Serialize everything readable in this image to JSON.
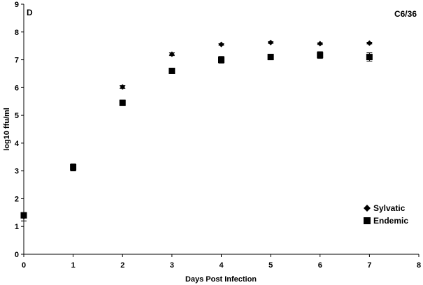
{
  "chart_data": {
    "type": "scatter",
    "panel_label": "D",
    "cell_line": "C6/36",
    "xlabel": "Days Post Infection",
    "ylabel": "log10 ffu/ml",
    "xlim": [
      0,
      8
    ],
    "ylim": [
      0,
      9
    ],
    "xticks": [
      "0",
      "1",
      "2",
      "3",
      "4",
      "5",
      "6",
      "7",
      "8"
    ],
    "yticks": [
      "0",
      "1",
      "2",
      "3",
      "4",
      "5",
      "6",
      "7",
      "8",
      "9"
    ],
    "grid": false,
    "legend_position": "bottom-right",
    "series": [
      {
        "name": "Sylvatic",
        "marker": "diamond",
        "color": "#000000",
        "x": [
          0,
          1,
          2,
          3,
          4,
          5,
          6,
          7
        ],
        "y": [
          1.35,
          3.1,
          6.02,
          7.2,
          7.55,
          7.62,
          7.58,
          7.6
        ],
        "err": [
          0.15,
          0.1,
          0.05,
          0.05,
          0.03,
          0.03,
          0.03,
          0.03
        ]
      },
      {
        "name": "Endemic",
        "marker": "square",
        "color": "#000000",
        "x": [
          0,
          1,
          2,
          3,
          4,
          5,
          6,
          7
        ],
        "y": [
          1.4,
          3.13,
          5.45,
          6.6,
          7.0,
          7.1,
          7.17,
          7.1
        ],
        "err": [
          0.05,
          0.12,
          0.1,
          0.08,
          0.12,
          0.1,
          0.12,
          0.15
        ]
      }
    ]
  }
}
